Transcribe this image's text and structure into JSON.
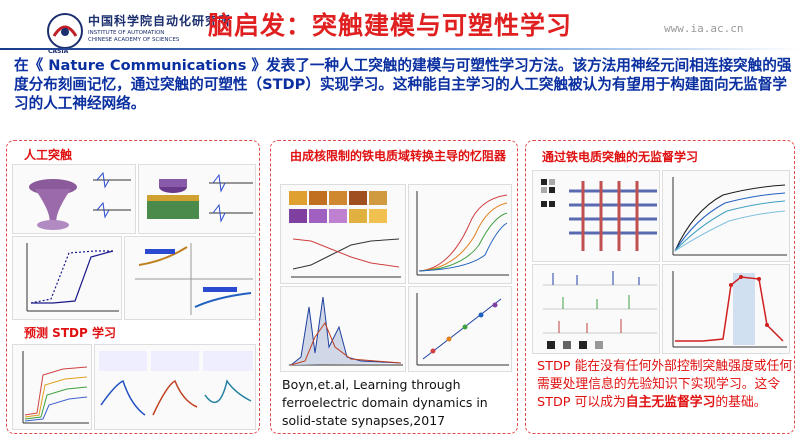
{
  "header": {
    "logo": {
      "cn": "中国科学院自动化研究所",
      "en1": "INSTITUTE OF AUTOMATION",
      "en2": "CHINESE ACADEMY OF SCIENCES",
      "casia": "CASIA"
    },
    "title": "脑启发：突触建模与可塑性学习",
    "url": "www.ia.ac.cn"
  },
  "intro": "在《 Nature Communications 》发表了一种人工突触的建模与可塑性学习方法。该方法用神经元间相连接突触的强度分布刻画记忆，通过突触的可塑性（STDP）实现学习。这种能自主学习的人工突触被认为有望用于构建面向无监督学习的人工神经网络。",
  "panels": {
    "left": {
      "title_top": "人工突触",
      "title_bottom": "预测 STDP 学习"
    },
    "middle": {
      "title": "由成核限制的铁电质域转换主导的忆阻器",
      "reference": "Boyn,et.al, Learning through ferroelectric domain dynamics in solid-state synapses,2017"
    },
    "right": {
      "title": "通过铁电质突触的无监督学习",
      "text_before": "STDP 能在没有任何外部控制突触强度或任何需要处理信息的先验知识下实现学习。这令 STDP 可以成为",
      "text_emphasis": "自主无监督学习",
      "text_after": "的基础。"
    }
  },
  "colors": {
    "title": "#e02020",
    "intro": "#0a2fa0",
    "section": "#e01010",
    "border": "#e04a4a"
  }
}
